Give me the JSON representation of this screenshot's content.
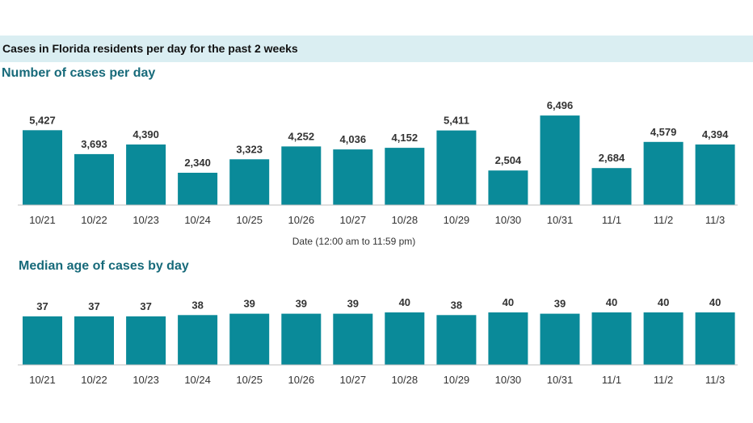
{
  "banner": {
    "text": "Cases in Florida residents per day for the past 2 weeks"
  },
  "colors": {
    "bar": "#0a8a99",
    "axis": "#bfbfbf",
    "banner_bg": "#daeef2",
    "title": "#176a7a"
  },
  "chart_data": [
    {
      "type": "bar",
      "title": "Number of cases per day",
      "xlabel": "Date (12:00 am to 11:59 pm)",
      "ylabel": "",
      "categories": [
        "10/21",
        "10/22",
        "10/23",
        "10/24",
        "10/25",
        "10/26",
        "10/27",
        "10/28",
        "10/29",
        "10/30",
        "10/31",
        "11/1",
        "11/2",
        "11/3"
      ],
      "values": [
        5427,
        3693,
        4390,
        2340,
        3323,
        4252,
        4036,
        4152,
        5411,
        2504,
        6496,
        2684,
        4579,
        4394
      ],
      "labels": [
        "5,427",
        "3,693",
        "4,390",
        "2,340",
        "3,323",
        "4,252",
        "4,036",
        "4,152",
        "5,411",
        "2,504",
        "6,496",
        "2,684",
        "4,579",
        "4,394"
      ],
      "ylim": [
        0,
        6500
      ],
      "grid": false
    },
    {
      "type": "bar",
      "title": "Median age of cases by day",
      "xlabel": "",
      "ylabel": "",
      "categories": [
        "10/21",
        "10/22",
        "10/23",
        "10/24",
        "10/25",
        "10/26",
        "10/27",
        "10/28",
        "10/29",
        "10/30",
        "10/31",
        "11/1",
        "11/2",
        "11/3"
      ],
      "values": [
        37,
        37,
        37,
        38,
        39,
        39,
        39,
        40,
        38,
        40,
        39,
        40,
        40,
        40
      ],
      "labels": [
        "37",
        "37",
        "37",
        "38",
        "39",
        "39",
        "39",
        "40",
        "38",
        "40",
        "39",
        "40",
        "40",
        "40"
      ],
      "ylim": [
        0,
        40
      ],
      "grid": false
    }
  ]
}
